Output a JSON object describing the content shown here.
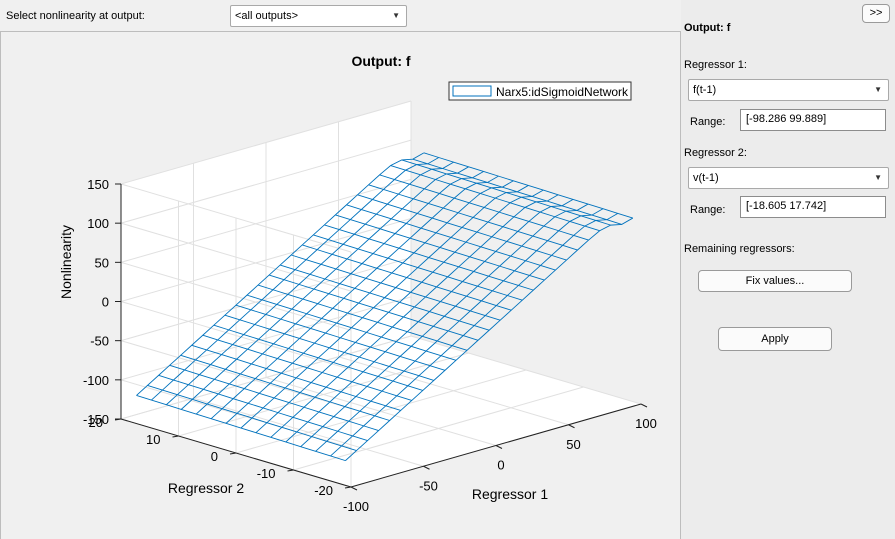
{
  "toolbar": {
    "select_label": "Select nonlinearity at output:",
    "output_select_value": "<all outputs>"
  },
  "plot": {
    "title": "Output: f",
    "legend": "Narx5:idSigmoidNetwork",
    "zlabel": "Nonlinearity",
    "xlabel": "Regressor 1",
    "ylabel": "Regressor 2",
    "zticks": [
      "150",
      "100",
      "50",
      "0",
      "-50",
      "-100",
      "-150"
    ],
    "xticks": [
      "-100",
      "-50",
      "0",
      "50",
      "100"
    ],
    "yticks": [
      "20",
      "10",
      "0",
      "-10",
      "-20"
    ]
  },
  "chart_data": {
    "type": "surface",
    "title": "Output: f",
    "xlabel": "Regressor 1",
    "ylabel": "Regressor 2",
    "zlabel": "Nonlinearity",
    "legend": [
      "Narx5:idSigmoidNetwork"
    ],
    "xlim": [
      -100,
      100
    ],
    "ylim": [
      -20,
      20
    ],
    "zlim": [
      -150,
      150
    ],
    "grid": true,
    "series_color": "#0072bd",
    "surface_samples": [
      {
        "x": -98.286,
        "y": 17.742,
        "z": -128
      },
      {
        "x": -98.286,
        "y": -18.605,
        "z": -132
      },
      {
        "x": 0,
        "y": 0,
        "z": -5
      },
      {
        "x": 99.889,
        "y": 17.742,
        "z": 98
      },
      {
        "x": 99.889,
        "y": -18.605,
        "z": 93
      }
    ]
  },
  "side": {
    "toggle_label": ">>",
    "output_title": "Output: f",
    "reg1_label": "Regressor 1:",
    "reg1_value": "f(t-1)",
    "range_label": "Range:",
    "reg1_range": "[-98.286      99.889]",
    "reg2_label": "Regressor 2:",
    "reg2_value": "v(t-1)",
    "reg2_range": "[-18.605      17.742]",
    "remaining_label": "Remaining regressors:",
    "fix_values_label": "Fix values...",
    "apply_label": "Apply"
  }
}
